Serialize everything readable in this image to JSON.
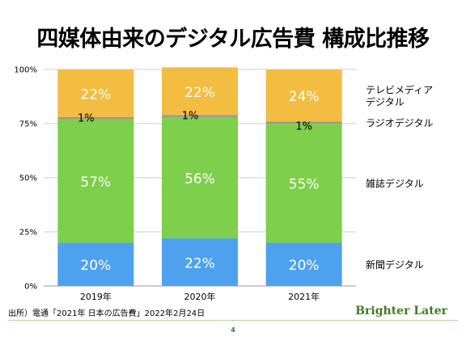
{
  "slide": {
    "title": "四媒体由来のデジタル広告費 構成比推移",
    "source": "出所）電通「2021年 日本の広告費」2022年2月24日",
    "brand": "Brighter Later",
    "page_number": "4"
  },
  "colors": {
    "tv": "#f2bd41",
    "radio": "#999999",
    "magazine": "#7ecf4b",
    "newspaper": "#4ea1ef",
    "grid": "#cccccc",
    "brand": "#3f7d1f"
  },
  "chart_data": {
    "type": "bar",
    "stacked": true,
    "percent": true,
    "categories": [
      "2019年",
      "2020年",
      "2021年"
    ],
    "ylim": [
      0,
      100
    ],
    "yticks": [
      0,
      25,
      50,
      75,
      100
    ],
    "ytick_labels": [
      "0%",
      "25%",
      "50%",
      "75%",
      "100%"
    ],
    "grid": true,
    "legend_position": "right, labels aligned with segments",
    "series": [
      {
        "name": "新聞デジタル",
        "values": [
          20,
          22,
          20
        ],
        "labels": [
          "20%",
          "22%",
          "20%"
        ],
        "color": "#4ea1ef"
      },
      {
        "name": "雑誌デジタル",
        "values": [
          57,
          56,
          55
        ],
        "labels": [
          "57%",
          "56%",
          "55%"
        ],
        "color": "#7ecf4b"
      },
      {
        "name": "ラジオデジタル",
        "values": [
          1,
          1,
          1
        ],
        "labels": [
          "1%",
          "1%",
          "1%"
        ],
        "color": "#999999"
      },
      {
        "name": "テレビメディアデジタル",
        "values": [
          22,
          22,
          24
        ],
        "labels": [
          "22%",
          "22%",
          "24%"
        ],
        "color": "#f2bd41"
      }
    ],
    "legend_lines": [
      [
        "新聞デジタル"
      ],
      [
        "雑誌デジタル"
      ],
      [
        "ラジオデジタル"
      ],
      [
        "テレビメディア",
        "デジタル"
      ]
    ]
  }
}
